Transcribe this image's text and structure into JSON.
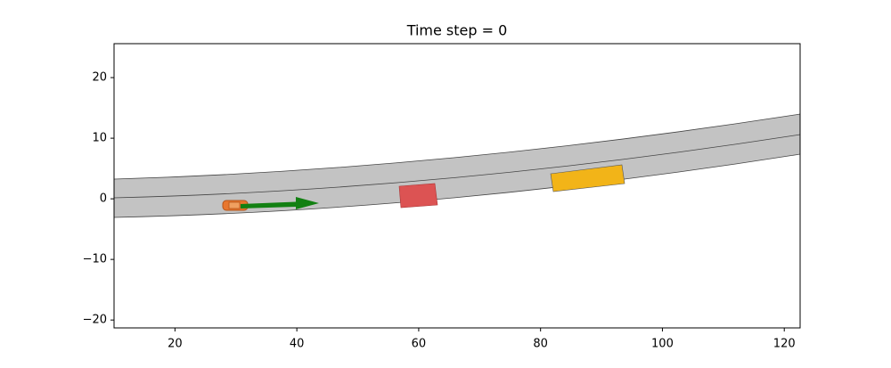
{
  "chart_data": {
    "type": "plot",
    "title": "Time step = 0",
    "xlim": [
      10,
      122.6
    ],
    "ylim": [
      -21.3,
      25.6
    ],
    "xticks": [
      20,
      40,
      60,
      80,
      100,
      120
    ],
    "yticks": [
      {
        "value": -20,
        "label": "−20"
      },
      {
        "value": -10,
        "label": "−10"
      },
      0,
      10,
      20
    ]
  }
}
